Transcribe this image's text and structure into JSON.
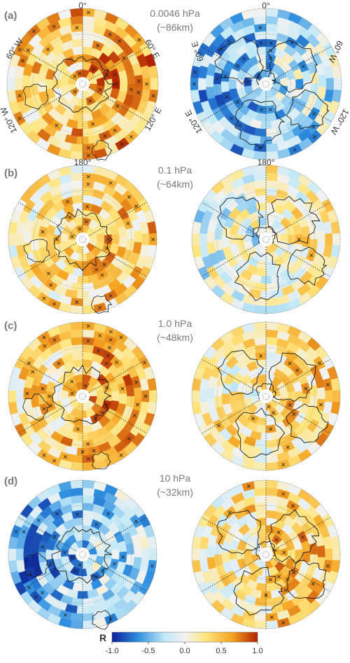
{
  "palette": {
    "neg_strong": "#0a1e96",
    "neg_mid": "#2f8fe0",
    "neg_light": "#bfe8f7",
    "neutral": "#f2f2f2",
    "pos_light": "#ffe680",
    "pos_mid": "#f5a623",
    "pos_strong": "#b22000",
    "coast": "#1a1a1a",
    "label_gray": "#7a7a7a"
  },
  "panels": [
    {
      "letter": "(a)",
      "pressure": "0.0046 hPa",
      "altitude": "(~86km)",
      "south_bias": 0.45,
      "north_bias": -0.35,
      "south_labels": {
        "top": "0°",
        "upper_left": "60° W",
        "upper_right": "60° E",
        "lower_left": "120° W",
        "lower_right": "120° E"
      },
      "north_labels": {
        "top": "0°",
        "upper_left": "60° E",
        "upper_right": "60° W",
        "lower_left": "120° E",
        "lower_right": "120° W"
      }
    },
    {
      "letter": "(b)",
      "pressure": "0.1 hPa",
      "altitude": "(~64km)",
      "south_bias": 0.3,
      "north_bias": 0.05,
      "south_labels": {
        "top": "180°"
      },
      "north_labels": {
        "top": "180°"
      }
    },
    {
      "letter": "(c)",
      "pressure": "1.0 hPa",
      "altitude": "(~48km)",
      "south_bias": 0.42,
      "north_bias": 0.25,
      "south_labels": {},
      "north_labels": {}
    },
    {
      "letter": "(d)",
      "pressure": "10 hPa",
      "altitude": "(~32km)",
      "south_bias": -0.4,
      "north_bias": 0.3,
      "south_labels": {},
      "north_labels": {}
    }
  ],
  "colorbar": {
    "label": "R",
    "ticks": [
      "-1.0",
      "-0.5",
      "0.0",
      "0.5",
      "1.0"
    ],
    "range": [
      -1.0,
      1.0
    ]
  }
}
